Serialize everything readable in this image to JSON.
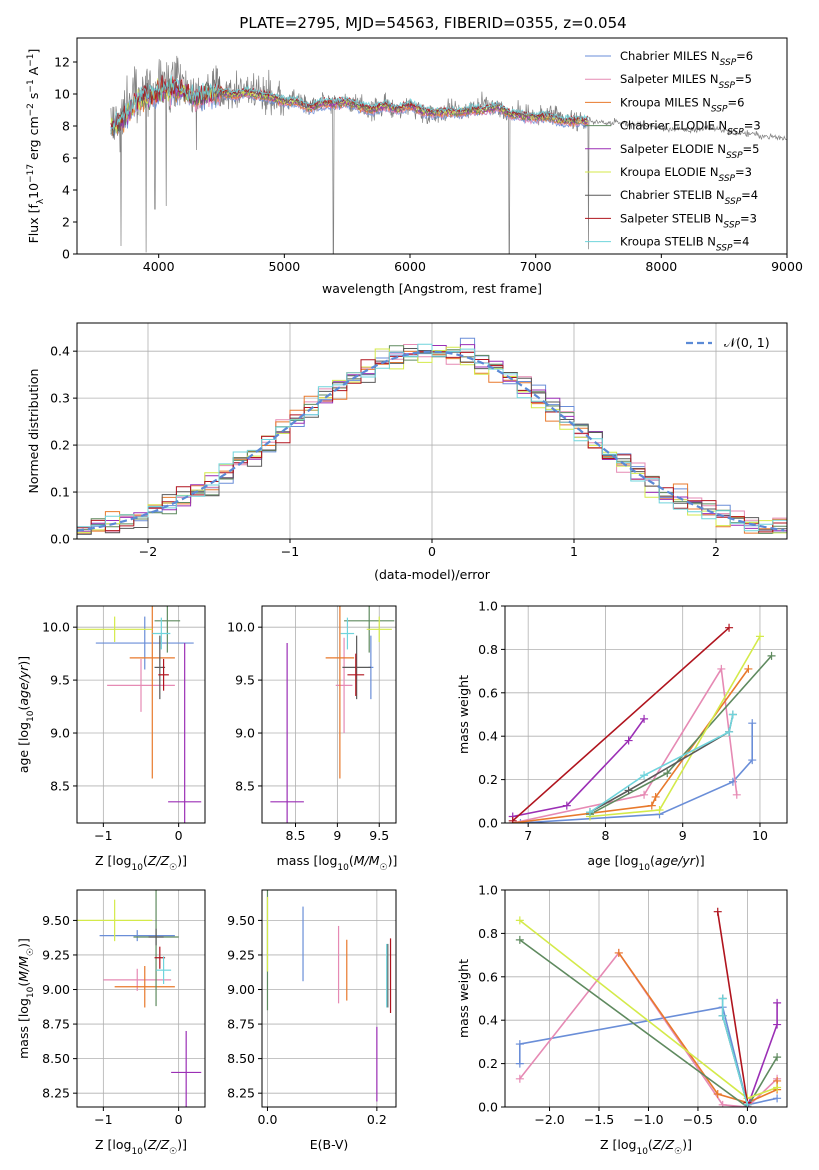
{
  "title": "PLATE=2795, MJD=54563, FIBERID=0355, z=0.054",
  "models": [
    {
      "name": "Chabrier MILES",
      "nssp": "6",
      "color": "#6a8ed8"
    },
    {
      "name": "Salpeter MILES",
      "nssp": "5",
      "color": "#e68ab4"
    },
    {
      "name": "Kroupa MILES",
      "nssp": "6",
      "color": "#e8792c"
    },
    {
      "name": "Chabrier ELODIE",
      "nssp": "3",
      "color": "#5f8a5f"
    },
    {
      "name": "Salpeter ELODIE",
      "nssp": "5",
      "color": "#9b2fb5"
    },
    {
      "name": "Kroupa ELODIE",
      "nssp": "3",
      "color": "#d4ea4a"
    },
    {
      "name": "Chabrier STELIB",
      "nssp": "4",
      "color": "#5a5a5a"
    },
    {
      "name": "Salpeter STELIB",
      "nssp": "3",
      "color": "#b0141e"
    },
    {
      "name": "Kroupa STELIB",
      "nssp": "4",
      "color": "#6fd4dc"
    }
  ],
  "chart_data": [
    {
      "type": "line",
      "id": "spectrum",
      "xlabel": "wavelength [Angstrom, rest frame]",
      "ylabel": "Flux [f_λ 10^-17 erg cm^-2 s^-1 A^-1]",
      "xlim": [
        3350,
        9000
      ],
      "ylim": [
        0,
        13.5
      ],
      "xticks": [
        4000,
        5000,
        6000,
        7000,
        8000,
        9000
      ],
      "yticks": [
        0,
        2,
        4,
        6,
        8,
        10,
        12
      ],
      "data_color": "#808080",
      "data_anchors": [
        [
          3620,
          8.0
        ],
        [
          3700,
          8.6
        ],
        [
          3800,
          10.3
        ],
        [
          3900,
          10.2
        ],
        [
          4000,
          10.6
        ],
        [
          4100,
          10.4
        ],
        [
          4200,
          10.6
        ],
        [
          4300,
          9.8
        ],
        [
          4400,
          10.3
        ],
        [
          4500,
          10.4
        ],
        [
          4600,
          10.2
        ],
        [
          4700,
          10.3
        ],
        [
          4800,
          10.1
        ],
        [
          4900,
          9.9
        ],
        [
          5000,
          9.6
        ],
        [
          5100,
          9.8
        ],
        [
          5200,
          9.3
        ],
        [
          5300,
          9.6
        ],
        [
          5400,
          9.6
        ],
        [
          5500,
          9.5
        ],
        [
          5600,
          9.2
        ],
        [
          5700,
          9.0
        ],
        [
          5800,
          9.3
        ],
        [
          5900,
          9.0
        ],
        [
          6000,
          9.3
        ],
        [
          6100,
          8.9
        ],
        [
          6200,
          8.8
        ],
        [
          6300,
          9.1
        ],
        [
          6400,
          8.9
        ],
        [
          6500,
          9.2
        ],
        [
          6600,
          9.4
        ],
        [
          6700,
          9.1
        ],
        [
          6800,
          8.7
        ],
        [
          6900,
          8.9
        ],
        [
          7000,
          8.5
        ],
        [
          7100,
          8.8
        ],
        [
          7200,
          8.4
        ],
        [
          7300,
          8.3
        ],
        [
          7420,
          8.2
        ]
      ],
      "model_anchors": [
        [
          3620,
          7.8
        ],
        [
          3700,
          8.2
        ],
        [
          3800,
          9.4
        ],
        [
          3900,
          9.8
        ],
        [
          4000,
          10.0
        ],
        [
          4100,
          10.3
        ],
        [
          4200,
          10.1
        ],
        [
          4300,
          9.7
        ],
        [
          4400,
          10.0
        ],
        [
          4500,
          10.1
        ],
        [
          4600,
          9.9
        ],
        [
          4700,
          10.1
        ],
        [
          4800,
          9.9
        ],
        [
          4900,
          9.8
        ],
        [
          5000,
          9.5
        ],
        [
          5100,
          9.5
        ],
        [
          5200,
          9.1
        ],
        [
          5300,
          9.4
        ],
        [
          5400,
          9.4
        ],
        [
          5500,
          9.5
        ],
        [
          5600,
          9.2
        ],
        [
          5700,
          9.0
        ],
        [
          5800,
          9.3
        ],
        [
          5900,
          9.0
        ],
        [
          6000,
          9.3
        ],
        [
          6100,
          8.9
        ],
        [
          6200,
          8.8
        ],
        [
          6300,
          8.9
        ],
        [
          6400,
          8.8
        ],
        [
          6500,
          9.0
        ],
        [
          6600,
          9.0
        ],
        [
          6700,
          9.2
        ],
        [
          6800,
          8.7
        ],
        [
          6900,
          8.6
        ],
        [
          7000,
          8.5
        ],
        [
          7100,
          8.6
        ],
        [
          7200,
          8.3
        ],
        [
          7300,
          8.3
        ],
        [
          7420,
          8.3
        ],
        [
          7600,
          8.2
        ],
        [
          7800,
          8.1
        ],
        [
          8000,
          7.9
        ],
        [
          8200,
          7.7
        ],
        [
          8400,
          7.9
        ],
        [
          8600,
          7.6
        ],
        [
          8800,
          7.4
        ],
        [
          9000,
          7.2
        ]
      ]
    },
    {
      "type": "step",
      "id": "residuals",
      "xlabel": "(data-model)/error",
      "ylabel": "Normed distribution",
      "xlim": [
        -2.5,
        2.5
      ],
      "ylim": [
        0,
        0.46
      ],
      "xticks": [
        -2,
        -1,
        0,
        1,
        2
      ],
      "yticks": [
        0.0,
        0.1,
        0.2,
        0.3,
        0.4
      ],
      "reference": {
        "label": "𝒩(0, 1)",
        "color": "#5b8ad6",
        "mean": 0,
        "sigma": 1
      }
    },
    {
      "type": "scatter",
      "id": "age-vs-z",
      "xlabel": "Z [log10(Z/Z☉)]",
      "ylabel": "age [log10(age/yr)]",
      "xlim": [
        -1.35,
        0.35
      ],
      "ylim": [
        8.15,
        10.2
      ],
      "xticks": [
        -1,
        0
      ],
      "yticks": [
        8.5,
        9.0,
        9.5,
        10.0
      ],
      "points": [
        {
          "model": "Chabrier MILES",
          "x": -0.45,
          "xerr": 0.65,
          "y": 9.85,
          "yerr": 0.25
        },
        {
          "model": "Salpeter MILES",
          "x": -0.5,
          "xerr": 0.45,
          "y": 9.45,
          "yerr": 0.25
        },
        {
          "model": "Kroupa MILES",
          "x": -0.35,
          "xerr": 0.3,
          "y": 9.71,
          "yerr": 1.14
        },
        {
          "model": "Chabrier ELODIE",
          "x": -0.15,
          "xerr": 0.17,
          "y": 10.06,
          "yerr": 0.3
        },
        {
          "model": "Salpeter ELODIE",
          "x": 0.08,
          "xerr": 0.22,
          "y": 8.35,
          "yerr": 1.5
        },
        {
          "model": "Kroupa ELODIE",
          "x": -0.85,
          "xerr": 0.5,
          "y": 9.98,
          "yerr": 0.12
        },
        {
          "model": "Chabrier STELIB",
          "x": -0.25,
          "xerr": 0.07,
          "y": 9.62,
          "yerr": 0.3
        },
        {
          "model": "Salpeter STELIB",
          "x": -0.2,
          "xerr": 0.07,
          "y": 9.55,
          "yerr": 0.15
        },
        {
          "model": "Kroupa STELIB",
          "x": -0.23,
          "xerr": 0.12,
          "y": 9.94,
          "yerr": 0.15
        }
      ]
    },
    {
      "type": "scatter",
      "id": "age-vs-mass",
      "xlabel": "mass [log10(M/M☉)]",
      "ylabel": "",
      "xlim": [
        8.1,
        9.7
      ],
      "ylim": [
        8.15,
        10.2
      ],
      "xticks": [
        8.5,
        9.0,
        9.5
      ],
      "yticks": [
        8.5,
        9.0,
        9.5,
        10.0
      ],
      "points": [
        {
          "model": "Chabrier MILES",
          "x": 9.4,
          "xerr": 0.03,
          "y": 9.62,
          "yerr": 0.3
        },
        {
          "model": "Salpeter MILES",
          "x": 9.08,
          "xerr": 0.1,
          "y": 9.45,
          "yerr": 0.45
        },
        {
          "model": "Kroupa MILES",
          "x": 9.03,
          "xerr": 0.17,
          "y": 9.71,
          "yerr": 1.14
        },
        {
          "model": "Chabrier ELODIE",
          "x": 9.38,
          "xerr": 0.3,
          "y": 10.06,
          "yerr": 0.3
        },
        {
          "model": "Salpeter ELODIE",
          "x": 8.4,
          "xerr": 0.2,
          "y": 8.35,
          "yerr": 1.5
        },
        {
          "model": "Kroupa ELODIE",
          "x": 9.5,
          "xerr": 0.15,
          "y": 9.98,
          "yerr": 0.12
        },
        {
          "model": "Chabrier STELIB",
          "x": 9.23,
          "xerr": 0.17,
          "y": 9.62,
          "yerr": 0.3
        },
        {
          "model": "Salpeter STELIB",
          "x": 9.22,
          "xerr": 0.1,
          "y": 9.55,
          "yerr": 0.2
        },
        {
          "model": "Kroupa STELIB",
          "x": 9.12,
          "xerr": 0.08,
          "y": 9.94,
          "yerr": 0.15
        }
      ]
    },
    {
      "type": "line",
      "id": "massweight-vs-age",
      "xlabel": "age [log10(age/yr)]",
      "ylabel": "mass weight",
      "xlim": [
        6.7,
        10.35
      ],
      "ylim": [
        0,
        1.0
      ],
      "xticks": [
        7,
        8,
        9,
        10
      ],
      "yticks": [
        0.0,
        0.2,
        0.4,
        0.6,
        0.8,
        1.0
      ],
      "series": [
        {
          "model": "Chabrier MILES",
          "x": [
            6.9,
            8.7,
            9.65,
            9.9,
            9.9
          ],
          "y": [
            0.0,
            0.04,
            0.19,
            0.29,
            0.46
          ]
        },
        {
          "model": "Salpeter MILES",
          "x": [
            6.8,
            8.5,
            9.5,
            9.7
          ],
          "y": [
            0.0,
            0.13,
            0.71,
            0.13
          ]
        },
        {
          "model": "Kroupa MILES",
          "x": [
            6.8,
            8.6,
            8.65,
            9.85
          ],
          "y": [
            0.0,
            0.08,
            0.12,
            0.71
          ]
        },
        {
          "model": "Chabrier ELODIE",
          "x": [
            7.8,
            8.8,
            10.15
          ],
          "y": [
            0.04,
            0.23,
            0.77
          ]
        },
        {
          "model": "Salpeter ELODIE",
          "x": [
            6.8,
            7.5,
            8.3,
            8.5
          ],
          "y": [
            0.03,
            0.08,
            0.38,
            0.48
          ]
        },
        {
          "model": "Kroupa ELODIE",
          "x": [
            7.8,
            8.7,
            10.0
          ],
          "y": [
            0.03,
            0.06,
            0.86
          ]
        },
        {
          "model": "Chabrier STELIB",
          "x": [
            7.8,
            8.3,
            9.6,
            9.65
          ],
          "y": [
            0.05,
            0.15,
            0.42,
            0.5
          ]
        },
        {
          "model": "Salpeter STELIB",
          "x": [
            6.8,
            9.6
          ],
          "y": [
            0.01,
            0.9
          ]
        },
        {
          "model": "Kroupa STELIB",
          "x": [
            7.8,
            8.5,
            9.6,
            9.65
          ],
          "y": [
            0.05,
            0.22,
            0.42,
            0.5
          ]
        }
      ]
    },
    {
      "type": "scatter",
      "id": "mass-vs-z",
      "xlabel": "Z [log10(Z/Z☉)]",
      "ylabel": "mass [log10(M/M☉)]",
      "xlim": [
        -1.35,
        0.35
      ],
      "ylim": [
        8.15,
        9.72
      ],
      "xticks": [
        -1,
        0
      ],
      "yticks": [
        8.25,
        8.5,
        8.75,
        9.0,
        9.25,
        9.5
      ],
      "points": [
        {
          "model": "Chabrier MILES",
          "x": -0.55,
          "xerr": 0.5,
          "y": 9.39,
          "yerr": 0.04
        },
        {
          "model": "Salpeter MILES",
          "x": -0.55,
          "xerr": 0.45,
          "y": 9.07,
          "yerr": 0.08
        },
        {
          "model": "Kroupa MILES",
          "x": -0.45,
          "xerr": 0.4,
          "y": 9.02,
          "yerr": 0.15
        },
        {
          "model": "Chabrier ELODIE",
          "x": -0.3,
          "xerr": 0.3,
          "y": 9.38,
          "yerr": 0.5
        },
        {
          "model": "Salpeter ELODIE",
          "x": 0.1,
          "xerr": 0.2,
          "y": 8.4,
          "yerr": 0.3
        },
        {
          "model": "Kroupa ELODIE",
          "x": -0.85,
          "xerr": 0.5,
          "y": 9.5,
          "yerr": 0.15
        },
        {
          "model": "Chabrier STELIB",
          "x": -0.3,
          "xerr": 0.1,
          "y": 9.38,
          "yerr": 0.06
        },
        {
          "model": "Salpeter STELIB",
          "x": -0.25,
          "xerr": 0.07,
          "y": 9.23,
          "yerr": 0.08
        },
        {
          "model": "Kroupa STELIB",
          "x": -0.2,
          "xerr": 0.1,
          "y": 9.14,
          "yerr": 0.1
        }
      ]
    },
    {
      "type": "scatter",
      "id": "mass-vs-ebv",
      "xlabel": "E(B-V)",
      "ylabel": "",
      "xlim": [
        -0.01,
        0.235
      ],
      "ylim": [
        8.15,
        9.72
      ],
      "xticks": [
        0.0,
        0.2
      ],
      "yticks": [
        8.25,
        8.5,
        8.75,
        9.0,
        9.25,
        9.5
      ],
      "points": [
        {
          "model": "Chabrier MILES",
          "x": 0.065,
          "y": 9.33,
          "yerr": 0.27
        },
        {
          "model": "Salpeter MILES",
          "x": 0.13,
          "y": 9.18,
          "yerr": 0.28
        },
        {
          "model": "Kroupa MILES",
          "x": 0.145,
          "y": 9.14,
          "yerr": 0.22
        },
        {
          "model": "Chabrier ELODIE",
          "x": 0.0,
          "y": 9.3,
          "yerr": 0.45
        },
        {
          "model": "Salpeter ELODIE",
          "x": 0.2,
          "y": 8.46,
          "yerr": 0.27
        },
        {
          "model": "Kroupa ELODIE",
          "x": 0.0,
          "y": 9.4,
          "yerr": 0.27
        },
        {
          "model": "Chabrier STELIB",
          "x": 0.22,
          "y": 9.1,
          "yerr": 0.23
        },
        {
          "model": "Salpeter STELIB",
          "x": 0.225,
          "y": 9.1,
          "yerr": 0.27
        },
        {
          "model": "Kroupa STELIB",
          "x": 0.218,
          "y": 9.1,
          "yerr": 0.23
        }
      ]
    },
    {
      "type": "line",
      "id": "massweight-vs-z",
      "xlabel": "Z [log10(Z/Z☉)]",
      "ylabel": "mass weight",
      "xlim": [
        -2.45,
        0.4
      ],
      "ylim": [
        0,
        1.0
      ],
      "xticks": [
        -2.0,
        -1.5,
        -1.0,
        -0.5,
        0.0
      ],
      "yticks": [
        0.0,
        0.2,
        0.4,
        0.6,
        0.8,
        1.0
      ],
      "series": [
        {
          "model": "Chabrier MILES",
          "x": [
            -2.3,
            -2.3,
            -0.25,
            0.0,
            0.3
          ],
          "y": [
            0.2,
            0.29,
            0.46,
            0.01,
            0.04
          ]
        },
        {
          "model": "Salpeter MILES",
          "x": [
            -2.3,
            -1.3,
            -0.25,
            0.0,
            0.3
          ],
          "y": [
            0.13,
            0.71,
            0.01,
            0.0,
            0.13
          ]
        },
        {
          "model": "Kroupa MILES",
          "x": [
            -1.3,
            -0.3,
            0.0,
            0.3,
            0.3
          ],
          "y": [
            0.71,
            0.06,
            0.02,
            0.08,
            0.12
          ]
        },
        {
          "model": "Chabrier ELODIE",
          "x": [
            -2.3,
            0.0,
            0.3
          ],
          "y": [
            0.77,
            0.0,
            0.23
          ]
        },
        {
          "model": "Salpeter ELODIE",
          "x": [
            0.0,
            0.3,
            0.3
          ],
          "y": [
            0.0,
            0.38,
            0.48
          ]
        },
        {
          "model": "Kroupa ELODIE",
          "x": [
            -2.3,
            0.0,
            0.3
          ],
          "y": [
            0.86,
            0.04,
            0.09
          ]
        },
        {
          "model": "Chabrier STELIB",
          "x": [
            -0.25,
            -0.25,
            0.0
          ],
          "y": [
            0.5,
            0.42,
            0.01
          ]
        },
        {
          "model": "Salpeter STELIB",
          "x": [
            -0.3,
            0.0
          ],
          "y": [
            0.9,
            0.02
          ]
        },
        {
          "model": "Kroupa STELIB",
          "x": [
            -0.25,
            -0.25,
            0.0
          ],
          "y": [
            0.5,
            0.42,
            0.01
          ]
        }
      ]
    }
  ]
}
